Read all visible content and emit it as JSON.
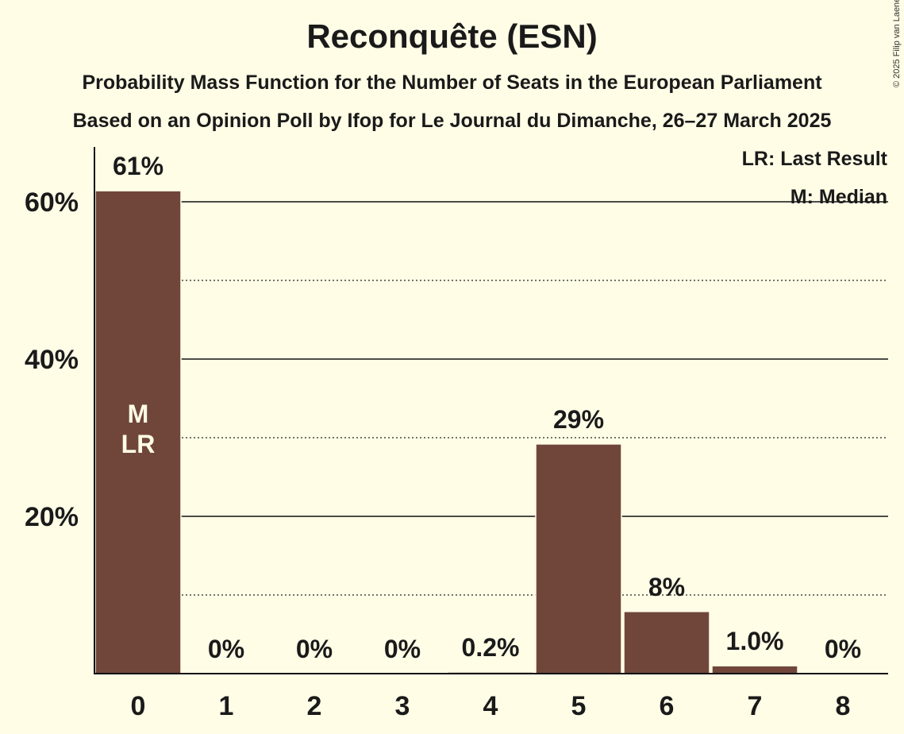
{
  "title": "Reconquête (ESN)",
  "subtitle_1": "Probability Mass Function for the Number of Seats in the European Parliament",
  "subtitle_2": "Based on an Opinion Poll by Ifop for Le Journal du Dimanche, 26–27 March 2025",
  "copyright": "© 2025 Filip van Laenen",
  "legend": {
    "last_result": "LR: Last Result",
    "median": "M: Median"
  },
  "colors": {
    "background": "#FFFDE6",
    "bar": "#70463B",
    "text": "#1a1a1a"
  },
  "chart_data": {
    "type": "bar",
    "categories": [
      "0",
      "1",
      "2",
      "3",
      "4",
      "5",
      "6",
      "7",
      "8"
    ],
    "values": [
      61.4,
      0,
      0,
      0,
      0.2,
      29.2,
      7.9,
      1.0,
      0
    ],
    "data_labels": [
      "61%",
      "0%",
      "0%",
      "0%",
      "0.2%",
      "29%",
      "8%",
      "1.0%",
      "0%"
    ],
    "bar_markers": [
      "M\nLR",
      "",
      "",
      "",
      "",
      "",
      "",
      "",
      ""
    ],
    "ylim": [
      0,
      67
    ],
    "yticks": [
      20,
      40,
      60
    ],
    "ytick_labels": [
      "20%",
      "40%",
      "60%"
    ],
    "minor_gridlines": [
      10,
      30,
      50
    ],
    "major_gridlines": [
      20,
      40,
      60
    ],
    "grid": true,
    "legend_position": "top-right",
    "xlabel": "",
    "ylabel": ""
  }
}
